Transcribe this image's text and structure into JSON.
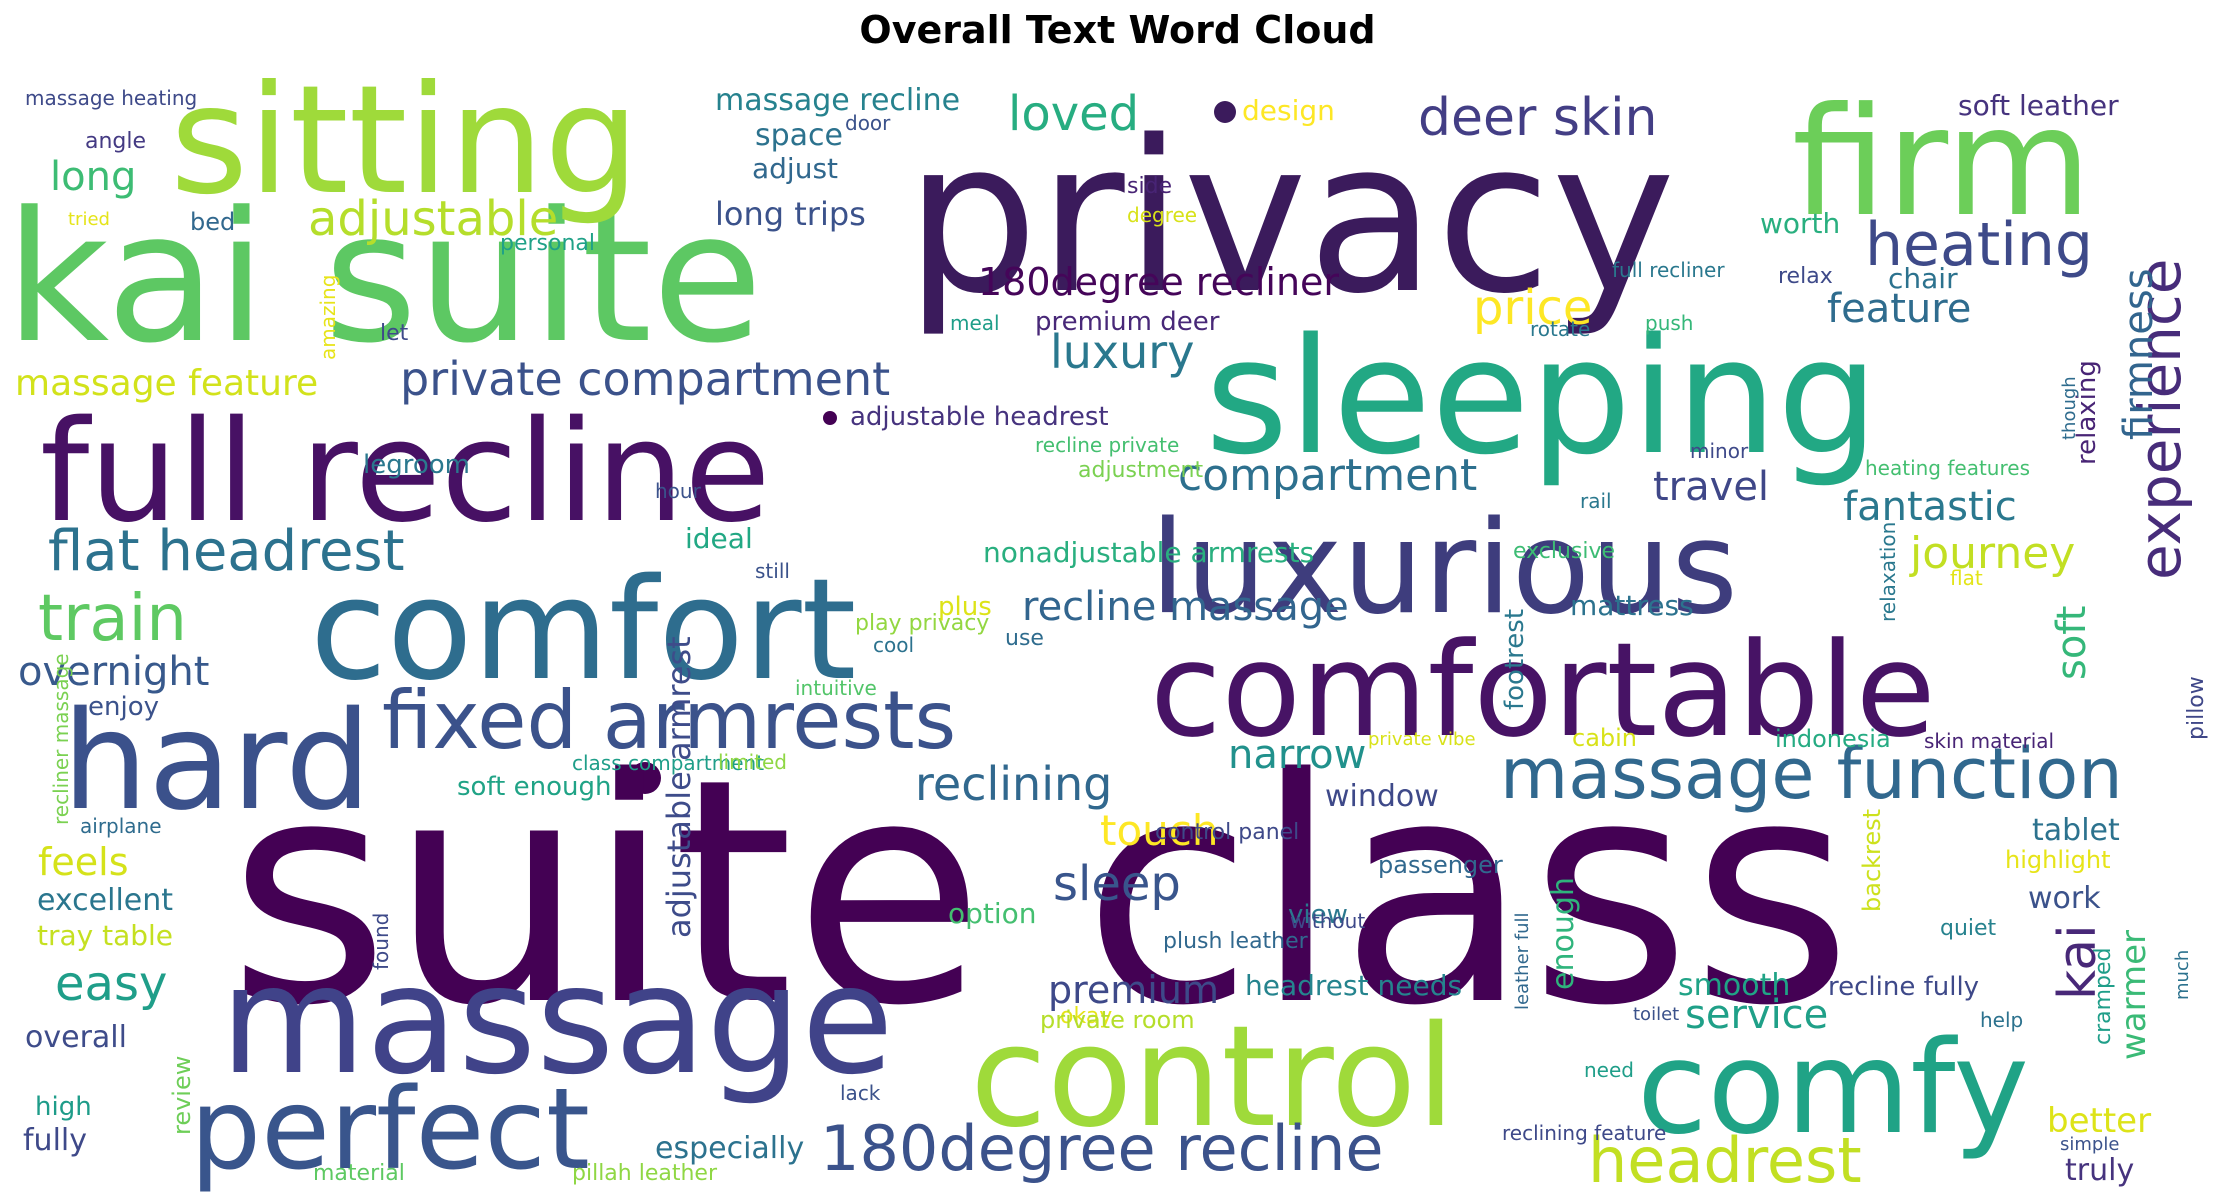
{
  "title": "Overall Text Word Cloud",
  "words": [
    {
      "text": "suite class",
      "color": "#440154"
    },
    {
      "text": "privacy",
      "color": "#3b1b5c"
    },
    {
      "text": "kai suite",
      "color": "#5dc863"
    },
    {
      "text": "sitting",
      "color": "#9fda3a"
    },
    {
      "text": "firm",
      "color": "#6cce59"
    },
    {
      "text": "sleeping",
      "color": "#22a884"
    },
    {
      "text": "full recline",
      "color": "#471164"
    },
    {
      "text": "luxurious",
      "color": "#3e3d7d"
    },
    {
      "text": "comfort",
      "color": "#2e6d8e"
    },
    {
      "text": "comfortable",
      "color": "#471365"
    },
    {
      "text": "hard",
      "color": "#3b518b"
    },
    {
      "text": "massage",
      "color": "#404389"
    },
    {
      "text": "control",
      "color": "#9fda3a"
    },
    {
      "text": "comfy",
      "color": "#20a386"
    },
    {
      "text": "perfect",
      "color": "#39558c"
    },
    {
      "text": "fixed armrests",
      "color": "#3b528b"
    },
    {
      "text": "massage function",
      "color": "#31688e"
    },
    {
      "text": "180degree recline",
      "color": "#3b528b"
    },
    {
      "text": "headrest",
      "color": "#c2df23"
    },
    {
      "text": "experience",
      "color": "#472c7a"
    },
    {
      "text": "deer skin",
      "color": "#433e85"
    },
    {
      "text": "heating",
      "color": "#3e4a89"
    },
    {
      "text": "private compartment",
      "color": "#3b528b"
    },
    {
      "text": "flat headrest",
      "color": "#2c728e"
    },
    {
      "text": "train",
      "color": "#5ec962"
    },
    {
      "text": "adjustable",
      "color": "#b5de2b"
    },
    {
      "text": "180degree recliner",
      "color": "#450559"
    },
    {
      "text": "price",
      "color": "#fde725"
    },
    {
      "text": "feature",
      "color": "#2f6c8e"
    },
    {
      "text": "firmness",
      "color": "#32658e"
    },
    {
      "text": "massage feature",
      "color": "#d2e21b"
    },
    {
      "text": "luxury",
      "color": "#2a788e"
    },
    {
      "text": "compartment",
      "color": "#2d708e"
    },
    {
      "text": "travel",
      "color": "#3f4788"
    },
    {
      "text": "fantastic",
      "color": "#2a788e"
    },
    {
      "text": "journey",
      "color": "#c2df23"
    },
    {
      "text": "loved",
      "color": "#27ad81"
    },
    {
      "text": "massage recline",
      "color": "#26828e"
    },
    {
      "text": "long trips",
      "color": "#3b528b"
    },
    {
      "text": "reclining",
      "color": "#31688e"
    },
    {
      "text": "recline massage",
      "color": "#32658e"
    },
    {
      "text": "overnight",
      "color": "#38598c"
    },
    {
      "text": "narrow",
      "color": "#21918c"
    },
    {
      "text": "sleep",
      "color": "#39558c"
    },
    {
      "text": "touch",
      "color": "#fde725"
    },
    {
      "text": "soft",
      "color": "#35b779"
    },
    {
      "text": "kai",
      "color": "#482878"
    },
    {
      "text": "tablet",
      "color": "#2c728e"
    },
    {
      "text": "work",
      "color": "#3b528b"
    },
    {
      "text": "warmer",
      "color": "#3aba76"
    },
    {
      "text": "better",
      "color": "#dde318"
    },
    {
      "text": "truly",
      "color": "#46337e"
    },
    {
      "text": "service",
      "color": "#1fa088"
    },
    {
      "text": "smooth",
      "color": "#20a386"
    },
    {
      "text": "recline fully",
      "color": "#3e4989"
    },
    {
      "text": "headrest needs",
      "color": "#25848e"
    },
    {
      "text": "premium",
      "color": "#3e4989"
    },
    {
      "text": "easy",
      "color": "#1f9e89"
    },
    {
      "text": "feels",
      "color": "#d5e21a"
    },
    {
      "text": "excellent",
      "color": "#2a768e"
    },
    {
      "text": "tray table",
      "color": "#c5e021"
    },
    {
      "text": "overall",
      "color": "#3e4c8a"
    },
    {
      "text": "high",
      "color": "#1e9c89"
    },
    {
      "text": "fully",
      "color": "#3e4989"
    },
    {
      "text": "review",
      "color": "#6ece58"
    },
    {
      "text": "long",
      "color": "#3dbc74"
    },
    {
      "text": "angle",
      "color": "#443a83"
    },
    {
      "text": "bed",
      "color": "#31688e"
    },
    {
      "text": "massage heating",
      "color": "#3e4a89"
    },
    {
      "text": "tried",
      "color": "#e5e419"
    },
    {
      "text": "space",
      "color": "#2c728e"
    },
    {
      "text": "adjust",
      "color": "#31688e"
    },
    {
      "text": "door",
      "color": "#3b528b"
    },
    {
      "text": "design",
      "color": "#fde725"
    },
    {
      "text": "soft leather",
      "color": "#46337e"
    },
    {
      "text": "worth",
      "color": "#29af7f"
    },
    {
      "text": "chair",
      "color": "#2c728e"
    },
    {
      "text": "relax",
      "color": "#3e4a89"
    },
    {
      "text": "full recliner",
      "color": "#2a788e"
    },
    {
      "text": "side",
      "color": "#482475"
    },
    {
      "text": "degree",
      "color": "#d8e219"
    },
    {
      "text": "personal",
      "color": "#1fa187"
    },
    {
      "text": "amazing",
      "color": "#e7e419"
    },
    {
      "text": "let",
      "color": "#3e4a89"
    },
    {
      "text": "meal",
      "color": "#1f9e89"
    },
    {
      "text": "rotate",
      "color": "#2a788e"
    },
    {
      "text": "push",
      "color": "#35b779"
    },
    {
      "text": "premium deer",
      "color": "#482878"
    },
    {
      "text": "adjustable headrest",
      "color": "#46337e"
    },
    {
      "text": "recline private",
      "color": "#44bf70"
    },
    {
      "text": "adjustment",
      "color": "#7ad151"
    },
    {
      "text": "legroom",
      "color": "#2a788e"
    },
    {
      "text": "hour",
      "color": "#3b528b"
    },
    {
      "text": "ideal",
      "color": "#22a884"
    },
    {
      "text": "nonadjustable armrests",
      "color": "#29af7f"
    },
    {
      "text": "still",
      "color": "#3b528b"
    },
    {
      "text": "play privacy",
      "color": "#93d741"
    },
    {
      "text": "cool",
      "color": "#2c728e"
    },
    {
      "text": "plus",
      "color": "#dde318"
    },
    {
      "text": "use",
      "color": "#2f6c8e"
    },
    {
      "text": "mattress",
      "color": "#2c728e"
    },
    {
      "text": "relaxing",
      "color": "#482475"
    },
    {
      "text": "though",
      "color": "#2f6c8e"
    },
    {
      "text": "minor",
      "color": "#3e4989"
    },
    {
      "text": "heating features",
      "color": "#44bf70"
    },
    {
      "text": "rail",
      "color": "#2a788e"
    },
    {
      "text": "exclusive",
      "color": "#3dbc74"
    },
    {
      "text": "flat",
      "color": "#e3e418"
    },
    {
      "text": "relaxation",
      "color": "#2a788e"
    },
    {
      "text": "skin material",
      "color": "#482475"
    },
    {
      "text": "pillow",
      "color": "#3f4788"
    },
    {
      "text": "enjoy",
      "color": "#3b528b"
    },
    {
      "text": "recliner massage",
      "color": "#7ad151"
    },
    {
      "text": "intuitive",
      "color": "#52c569"
    },
    {
      "text": "adjustable armrest",
      "color": "#3e4c8a"
    },
    {
      "text": "class compartment",
      "color": "#1f9e89"
    },
    {
      "text": "limited",
      "color": "#8fd744"
    },
    {
      "text": "soft enough",
      "color": "#20a386"
    },
    {
      "text": "airplane",
      "color": "#2f6c8e"
    },
    {
      "text": "private vibe",
      "color": "#d8e219"
    },
    {
      "text": "footrest",
      "color": "#2a788e"
    },
    {
      "text": "cabin",
      "color": "#d8e219"
    },
    {
      "text": "indonesia",
      "color": "#25ab82"
    },
    {
      "text": "window",
      "color": "#3e4989"
    },
    {
      "text": "enough",
      "color": "#2fb47c"
    },
    {
      "text": "control panel",
      "color": "#3e4989"
    },
    {
      "text": "passenger",
      "color": "#31688e"
    },
    {
      "text": "view",
      "color": "#2a788e"
    },
    {
      "text": "without",
      "color": "#3e4989"
    },
    {
      "text": "leather full",
      "color": "#31688e"
    },
    {
      "text": "highlight",
      "color": "#e7e419"
    },
    {
      "text": "backrest",
      "color": "#cde11d"
    },
    {
      "text": "quiet",
      "color": "#26828e"
    },
    {
      "text": "found",
      "color": "#3e4a89"
    },
    {
      "text": "option",
      "color": "#44bf70"
    },
    {
      "text": "plush leather",
      "color": "#31688e"
    },
    {
      "text": "okay",
      "color": "#e5e419"
    },
    {
      "text": "private room",
      "color": "#b5de2b"
    },
    {
      "text": "toilet",
      "color": "#3b528b"
    },
    {
      "text": "help",
      "color": "#2c728e"
    },
    {
      "text": "cramped",
      "color": "#1f9e89"
    },
    {
      "text": "much",
      "color": "#2c728e"
    },
    {
      "text": "need",
      "color": "#1f9e89"
    },
    {
      "text": "lack",
      "color": "#3b528b"
    },
    {
      "text": "especially",
      "color": "#2c728e"
    },
    {
      "text": "material",
      "color": "#5ec962"
    },
    {
      "text": "pillah leather",
      "color": "#8fd744"
    },
    {
      "text": "reclining feature",
      "color": "#3e4989"
    },
    {
      "text": "simple",
      "color": "#3b528b"
    },
    {
      "text": "face",
      "color": "#46337e"
    }
  ]
}
